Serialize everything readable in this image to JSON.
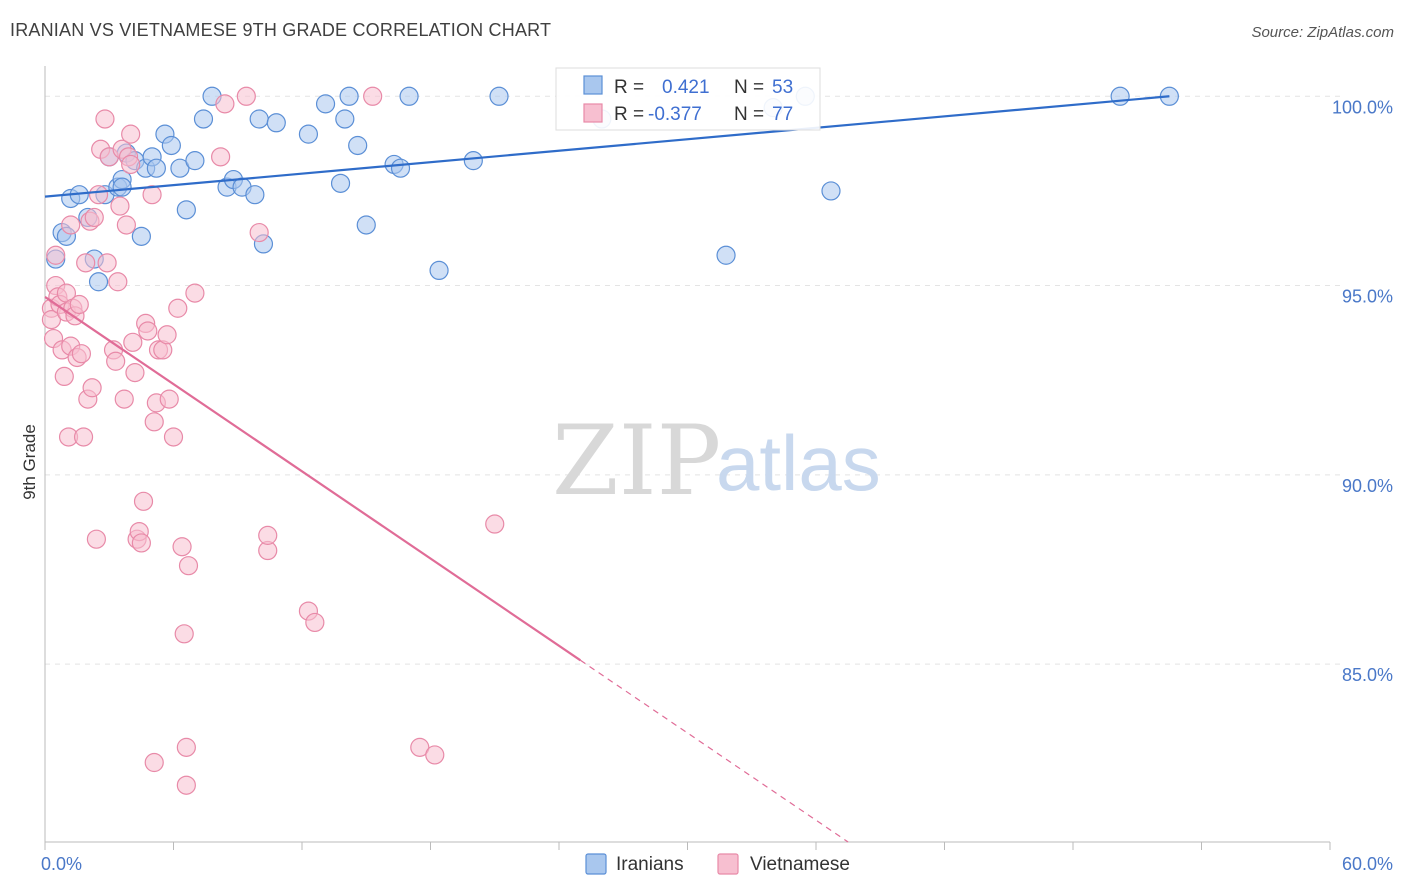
{
  "title": "IRANIAN VS VIETNAMESE 9TH GRADE CORRELATION CHART",
  "source": "Source: ZipAtlas.com",
  "watermark": {
    "zip": "ZIP",
    "atlas": "atlas"
  },
  "legend": {
    "r_label": "R =",
    "n_label": "N =",
    "rows": [
      {
        "r": "0.421",
        "n": "53"
      },
      {
        "r": "-0.377",
        "n": "77"
      }
    ]
  },
  "colors": {
    "iranians_fill": "#a9c7ee",
    "iranians_stroke": "#5b8fd6",
    "iranians_line": "#2f6cc9",
    "vietnamese_fill": "#f7bfd0",
    "vietnamese_stroke": "#e88aa8",
    "vietnamese_line": "#e06c97"
  },
  "chart_data": {
    "type": "scatter",
    "title": "IRANIAN VS VIETNAMESE 9TH GRADE CORRELATION CHART",
    "xlabel": "",
    "ylabel": "9th Grade",
    "xlim": [
      0,
      60
    ],
    "ylim": [
      80.3,
      100.8
    ],
    "x_tick_labels": [
      "0.0%",
      "60.0%"
    ],
    "y_ticks": [
      85,
      90,
      95,
      100
    ],
    "y_tick_labels": [
      "85.0%",
      "90.0%",
      "95.0%",
      "100.0%"
    ],
    "grid": true,
    "legend_position": "top-center",
    "series": [
      {
        "name": "Iranians",
        "r": 0.421,
        "n": 53,
        "trend": {
          "x0": 0,
          "y0": 97.35,
          "x1": 52.5,
          "y1": 100.0,
          "solid_until": 52.5
        },
        "points": [
          [
            0.5,
            95.7
          ],
          [
            0.8,
            96.4
          ],
          [
            1.0,
            96.3
          ],
          [
            1.2,
            97.3
          ],
          [
            1.6,
            97.4
          ],
          [
            2.0,
            96.8
          ],
          [
            2.3,
            95.7
          ],
          [
            2.5,
            95.1
          ],
          [
            2.8,
            97.4
          ],
          [
            3.0,
            98.4
          ],
          [
            3.4,
            97.6
          ],
          [
            3.6,
            97.8
          ],
          [
            3.8,
            98.5
          ],
          [
            4.2,
            98.3
          ],
          [
            4.5,
            96.3
          ],
          [
            4.7,
            98.1
          ],
          [
            5.0,
            98.4
          ],
          [
            5.2,
            98.1
          ],
          [
            5.6,
            99.0
          ],
          [
            5.9,
            98.7
          ],
          [
            6.3,
            98.1
          ],
          [
            6.6,
            97.0
          ],
          [
            7.0,
            98.3
          ],
          [
            7.4,
            99.4
          ],
          [
            7.8,
            100.0
          ],
          [
            8.5,
            97.6
          ],
          [
            8.8,
            97.8
          ],
          [
            9.2,
            97.6
          ],
          [
            9.8,
            97.4
          ],
          [
            10.0,
            99.4
          ],
          [
            10.2,
            96.1
          ],
          [
            10.8,
            99.3
          ],
          [
            12.3,
            99.0
          ],
          [
            13.1,
            99.8
          ],
          [
            13.8,
            97.7
          ],
          [
            14.2,
            100.0
          ],
          [
            14.0,
            99.4
          ],
          [
            14.6,
            98.7
          ],
          [
            15.0,
            96.6
          ],
          [
            16.3,
            98.2
          ],
          [
            16.6,
            98.1
          ],
          [
            17.0,
            100.0
          ],
          [
            18.4,
            95.4
          ],
          [
            20.0,
            98.3
          ],
          [
            21.2,
            100.0
          ],
          [
            31.8,
            95.8
          ],
          [
            34.0,
            99.7
          ],
          [
            35.5,
            100.0
          ],
          [
            36.7,
            97.5
          ],
          [
            50.2,
            100.0
          ],
          [
            52.5,
            100.0
          ],
          [
            26.0,
            99.4
          ],
          [
            3.6,
            97.6
          ]
        ]
      },
      {
        "name": "Vietnamese",
        "r": -0.377,
        "n": 77,
        "trend": {
          "x0": 0,
          "y0": 94.7,
          "x1": 37.5,
          "y1": 80.3,
          "solid_until": 25.0
        },
        "points": [
          [
            0.3,
            94.4
          ],
          [
            0.3,
            94.1
          ],
          [
            0.4,
            93.6
          ],
          [
            0.5,
            95.8
          ],
          [
            0.5,
            95.0
          ],
          [
            0.6,
            94.7
          ],
          [
            0.7,
            94.5
          ],
          [
            0.8,
            93.3
          ],
          [
            0.9,
            92.6
          ],
          [
            1.0,
            94.8
          ],
          [
            1.0,
            94.3
          ],
          [
            1.1,
            91.0
          ],
          [
            1.2,
            96.6
          ],
          [
            1.2,
            93.4
          ],
          [
            1.3,
            94.4
          ],
          [
            1.4,
            94.2
          ],
          [
            1.5,
            93.1
          ],
          [
            1.6,
            94.5
          ],
          [
            1.7,
            93.2
          ],
          [
            1.8,
            91.0
          ],
          [
            1.9,
            95.6
          ],
          [
            2.0,
            92.0
          ],
          [
            2.1,
            96.7
          ],
          [
            2.2,
            92.3
          ],
          [
            2.3,
            96.8
          ],
          [
            2.4,
            88.3
          ],
          [
            2.5,
            97.4
          ],
          [
            2.6,
            98.6
          ],
          [
            2.8,
            99.4
          ],
          [
            2.9,
            95.6
          ],
          [
            3.0,
            98.4
          ],
          [
            3.2,
            93.3
          ],
          [
            3.3,
            93.0
          ],
          [
            3.4,
            95.1
          ],
          [
            3.5,
            97.1
          ],
          [
            3.6,
            98.6
          ],
          [
            3.7,
            92.0
          ],
          [
            3.8,
            96.6
          ],
          [
            3.9,
            98.4
          ],
          [
            4.0,
            99.0
          ],
          [
            4.1,
            93.5
          ],
          [
            4.2,
            92.7
          ],
          [
            4.3,
            88.3
          ],
          [
            4.4,
            88.5
          ],
          [
            4.5,
            88.2
          ],
          [
            4.6,
            89.3
          ],
          [
            4.7,
            94.0
          ],
          [
            4.8,
            93.8
          ],
          [
            5.0,
            97.4
          ],
          [
            5.1,
            91.4
          ],
          [
            5.2,
            91.9
          ],
          [
            5.3,
            93.3
          ],
          [
            5.5,
            93.3
          ],
          [
            5.7,
            93.7
          ],
          [
            5.8,
            92.0
          ],
          [
            6.0,
            91.0
          ],
          [
            6.2,
            94.4
          ],
          [
            6.4,
            88.1
          ],
          [
            6.5,
            85.8
          ],
          [
            6.6,
            82.8
          ],
          [
            6.6,
            81.8
          ],
          [
            6.7,
            87.6
          ],
          [
            7.0,
            94.8
          ],
          [
            5.1,
            82.4
          ],
          [
            8.2,
            98.4
          ],
          [
            8.4,
            99.8
          ],
          [
            9.4,
            100.0
          ],
          [
            10.0,
            96.4
          ],
          [
            10.4,
            88.0
          ],
          [
            10.4,
            88.4
          ],
          [
            12.3,
            86.4
          ],
          [
            12.6,
            86.1
          ],
          [
            15.3,
            100.0
          ],
          [
            17.5,
            82.8
          ],
          [
            18.2,
            82.6
          ],
          [
            21.0,
            88.7
          ],
          [
            4.0,
            98.2
          ]
        ]
      }
    ]
  },
  "bottom_legend": [
    "Iranians",
    "Vietnamese"
  ]
}
